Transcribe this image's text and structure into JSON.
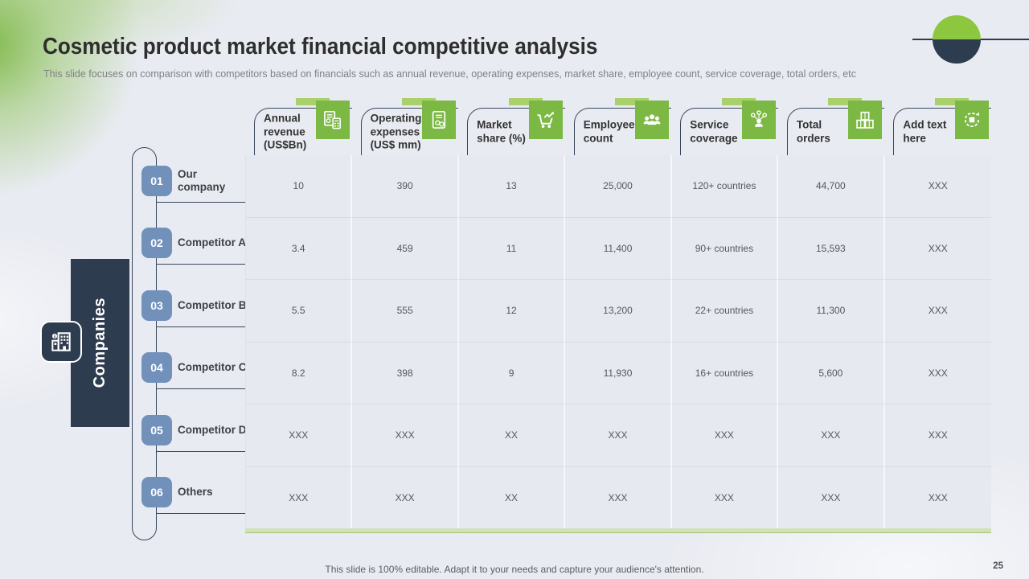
{
  "slide": {
    "title": "Cosmetic product market financial competitive analysis",
    "subtitle": "This slide focuses on comparison with competitors based on financials such as annual revenue, operating expenses, market share, employee count, service coverage, total orders, etc",
    "footer": "This slide is 100% editable. Adapt it to your needs and capture your audience's attention.",
    "page_number": "25"
  },
  "sidebar": {
    "label": "Companies",
    "icon": "building-icon"
  },
  "table": {
    "columns": [
      {
        "label": "Annual revenue (US$Bn)",
        "icon": "invoice-calculator-icon"
      },
      {
        "label": "Operating expenses (US$ mm)",
        "icon": "expense-document-icon"
      },
      {
        "label": "Market share (%)",
        "icon": "cart-growth-icon"
      },
      {
        "label": "Employee count",
        "icon": "employees-icon"
      },
      {
        "label": "Service coverage",
        "icon": "person-network-icon"
      },
      {
        "label": "Total orders",
        "icon": "orders-boxes-icon"
      },
      {
        "label": "Add text here",
        "icon": "refresh-target-icon"
      }
    ],
    "rows": [
      {
        "num": "01",
        "name": "Our\ncompany",
        "values": [
          "10",
          "390",
          "13",
          "25,000",
          "120+ countries",
          "44,700",
          "XXX"
        ]
      },
      {
        "num": "02",
        "name": "Competitor A",
        "values": [
          "3.4",
          "459",
          "11",
          "11,400",
          "90+ countries",
          "15,593",
          "XXX"
        ]
      },
      {
        "num": "03",
        "name": "Competitor B",
        "values": [
          "5.5",
          "555",
          "12",
          "13,200",
          "22+ countries",
          "11,300",
          "XXX"
        ]
      },
      {
        "num": "04",
        "name": "Competitor C",
        "values": [
          "8.2",
          "398",
          "9",
          "11,930",
          "16+ countries",
          "5,600",
          "XXX"
        ]
      },
      {
        "num": "05",
        "name": "Competitor D",
        "values": [
          "XXX",
          "XXX",
          "XX",
          "XXX",
          "XXX",
          "XXX",
          "XXX"
        ]
      },
      {
        "num": "06",
        "name": "Others",
        "values": [
          "XXX",
          "XXX",
          "XX",
          "XXX",
          "XXX",
          "XXX",
          "XXX"
        ]
      }
    ]
  },
  "colors": {
    "accent_green": "#7cb844",
    "light_green": "#a9d06b",
    "circle_green": "#8dc63f",
    "dark_navy": "#2e3c50",
    "badge_blue": "#7191bb",
    "dash_blue": "#7e9bc0",
    "cell_bg": "#e6e9f0"
  }
}
